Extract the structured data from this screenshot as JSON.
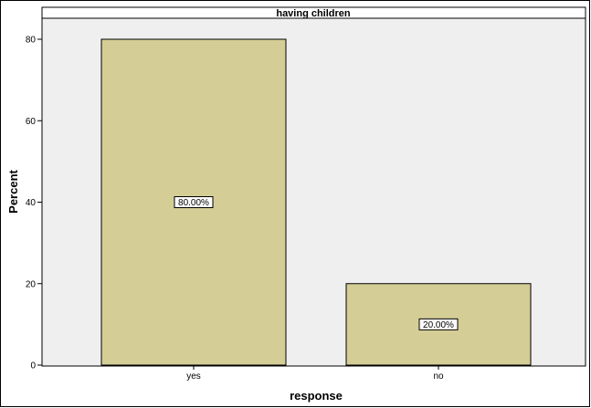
{
  "colors": {
    "bar_fill": "#d4cd96",
    "bar_stroke": "#000000",
    "plot_bg": "#efefef",
    "page_bg": "#ffffff"
  },
  "chart_data": {
    "type": "bar",
    "title": "having children",
    "xlabel": "response",
    "ylabel": "Percent",
    "categories": [
      "yes",
      "no"
    ],
    "values": [
      80,
      20
    ],
    "data_labels": [
      "80.00%",
      "20.00%"
    ],
    "ylim": [
      0,
      84
    ],
    "yticks": [
      0,
      20,
      40,
      60,
      80
    ],
    "grid": false,
    "legend": "none"
  }
}
